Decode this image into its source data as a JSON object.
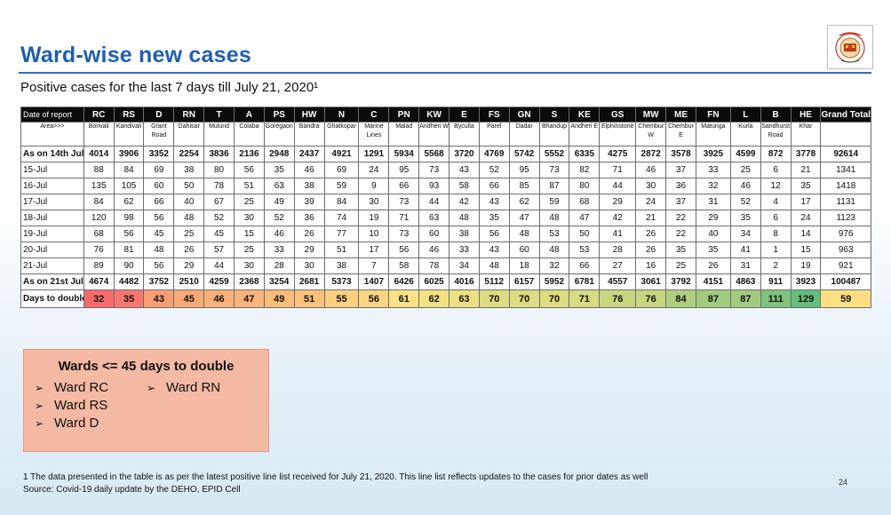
{
  "title": "Ward-wise new cases",
  "subtitle": "Positive cases for the last 7 days till July 21, 2020¹",
  "logo_icon": "mcgm-emblem-icon",
  "table": {
    "header_label": "Date of report",
    "area_label": "Area>>>",
    "wards": [
      "RC",
      "RS",
      "D",
      "RN",
      "T",
      "A",
      "PS",
      "HW",
      "N",
      "C",
      "PN",
      "KW",
      "E",
      "FS",
      "GN",
      "S",
      "KE",
      "GS",
      "MW",
      "ME",
      "FN",
      "L",
      "B",
      "HE"
    ],
    "grand_total_label": "Grand Total",
    "areas": [
      "Borivali",
      "Kandivali",
      "Grant Road",
      "Dahisar",
      "Mulund",
      "Colaba",
      "Goregaon",
      "Bandra",
      "Ghatkopar",
      "Marine Lines",
      "Malad",
      "Andheri W",
      "Byculla",
      "Parel",
      "Dadar",
      "Bhandup",
      "Andheri E",
      "Elphinstone",
      "Chembur W",
      "Chembur E",
      "Matunga",
      "Kurla",
      "Sandhurst Road",
      "Khar"
    ],
    "rows": [
      {
        "label": "As on 14th July",
        "bold": true,
        "values": [
          "4014",
          "3906",
          "3352",
          "2254",
          "3836",
          "2136",
          "2948",
          "2437",
          "4921",
          "1291",
          "5934",
          "5568",
          "3720",
          "4769",
          "5742",
          "5552",
          "6335",
          "4275",
          "2872",
          "3578",
          "3925",
          "4599",
          "872",
          "3778"
        ],
        "total": "92614"
      },
      {
        "label": "15-Jul",
        "values": [
          "88",
          "84",
          "69",
          "38",
          "80",
          "56",
          "35",
          "46",
          "69",
          "24",
          "95",
          "73",
          "43",
          "52",
          "95",
          "73",
          "82",
          "71",
          "46",
          "37",
          "33",
          "25",
          "6",
          "21"
        ],
        "total": "1341"
      },
      {
        "label": "16-Jul",
        "values": [
          "135",
          "105",
          "60",
          "50",
          "78",
          "51",
          "63",
          "38",
          "59",
          "9",
          "66",
          "93",
          "58",
          "66",
          "85",
          "87",
          "80",
          "44",
          "30",
          "36",
          "32",
          "46",
          "12",
          "35"
        ],
        "total": "1418"
      },
      {
        "label": "17-Jul",
        "values": [
          "84",
          "62",
          "66",
          "40",
          "67",
          "25",
          "49",
          "39",
          "84",
          "30",
          "73",
          "44",
          "42",
          "43",
          "62",
          "59",
          "68",
          "29",
          "24",
          "37",
          "31",
          "52",
          "4",
          "17"
        ],
        "total": "1131"
      },
      {
        "label": "18-Jul",
        "values": [
          "120",
          "98",
          "56",
          "48",
          "52",
          "30",
          "52",
          "36",
          "74",
          "19",
          "71",
          "63",
          "48",
          "35",
          "47",
          "48",
          "47",
          "42",
          "21",
          "22",
          "29",
          "35",
          "6",
          "24"
        ],
        "total": "1123"
      },
      {
        "label": "19-Jul",
        "values": [
          "68",
          "56",
          "45",
          "25",
          "45",
          "15",
          "46",
          "26",
          "77",
          "10",
          "73",
          "60",
          "38",
          "56",
          "48",
          "53",
          "50",
          "41",
          "26",
          "22",
          "40",
          "34",
          "8",
          "14"
        ],
        "total": "976"
      },
      {
        "label": "20-Jul",
        "values": [
          "76",
          "81",
          "48",
          "26",
          "57",
          "25",
          "33",
          "29",
          "51",
          "17",
          "56",
          "46",
          "33",
          "43",
          "60",
          "48",
          "53",
          "28",
          "26",
          "35",
          "35",
          "41",
          "1",
          "15"
        ],
        "total": "963"
      },
      {
        "label": "21-Jul",
        "values": [
          "89",
          "90",
          "56",
          "29",
          "44",
          "30",
          "28",
          "30",
          "38",
          "7",
          "58",
          "78",
          "34",
          "48",
          "18",
          "32",
          "66",
          "27",
          "16",
          "25",
          "26",
          "31",
          "2",
          "19"
        ],
        "total": "921"
      },
      {
        "label": "As on 21st July",
        "bold": true,
        "values": [
          "4674",
          "4482",
          "3752",
          "2510",
          "4259",
          "2368",
          "3254",
          "2681",
          "5373",
          "1407",
          "6426",
          "6025",
          "4016",
          "5112",
          "6157",
          "5952",
          "6781",
          "4557",
          "3061",
          "3792",
          "4151",
          "4863",
          "911",
          "3923"
        ],
        "total": "100487"
      }
    ],
    "doubling": {
      "label": "Days to double",
      "values": [
        "32",
        "35",
        "43",
        "45",
        "46",
        "47",
        "49",
        "51",
        "55",
        "56",
        "61",
        "62",
        "63",
        "70",
        "70",
        "70",
        "71",
        "76",
        "76",
        "84",
        "87",
        "87",
        "111",
        "129"
      ],
      "total": "59",
      "colors": [
        "#f8696b",
        "#f8786e",
        "#f99d75",
        "#faaa77",
        "#fab078",
        "#fab378",
        "#fbbc7a",
        "#fcc27b",
        "#fdd07f",
        "#fdd47f",
        "#f8e283",
        "#f2e183",
        "#ede083",
        "#dcdc81",
        "#dcdc81",
        "#dcdc81",
        "#d8db81",
        "#c8d680",
        "#c8d680",
        "#afcf7e",
        "#a3cb7e",
        "#a3cb7e",
        "#7fc27c",
        "#63be7b"
      ],
      "total_color": "#fee082"
    }
  },
  "callout": {
    "heading": "Wards <= 45 days to double",
    "bullet": "➢",
    "col1": [
      "Ward RC",
      "Ward RS",
      "Ward D"
    ],
    "col2": [
      "Ward RN"
    ]
  },
  "footnote": "1 The data presented in the table is as per the latest positive line list received for July 21, 2020. This line list reflects updates to the cases for prior dates as well",
  "source": "Source: Covid-19 daily update by the DEHO, EPID Cell",
  "page_number": "24"
}
